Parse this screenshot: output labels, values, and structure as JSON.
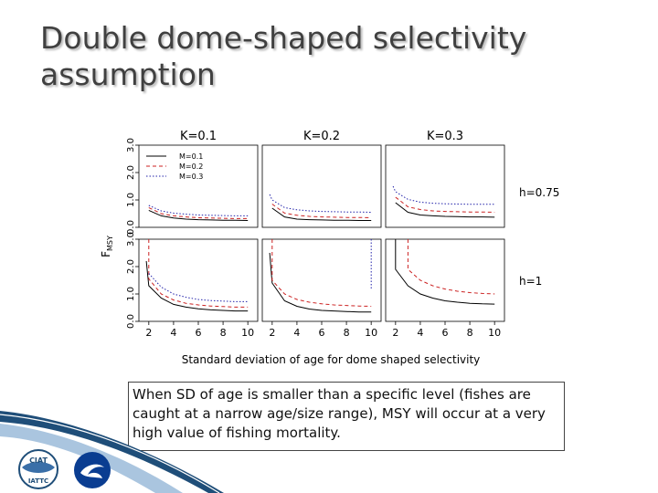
{
  "slide": {
    "title_line1": "Double dome-shaped selectivity",
    "title_line2": "assumption",
    "note": "When SD of age is smaller than a specific level (fishes are caught at a narrow age/size range), MSY will occur at a very high value of fishing mortality.",
    "logo_left_text": [
      "CIAT",
      "IATTC"
    ]
  },
  "chart_data": {
    "type": "line",
    "panel_columns": [
      "K=0.1",
      "K=0.2",
      "K=0.3"
    ],
    "panel_rows": [
      "h=0.75",
      "h=1"
    ],
    "ylabel": "F",
    "ylabel_sub": "MSY",
    "xlabel": "Standard deviation of age for dome shaped selectivity",
    "x_ticks": [
      2,
      4,
      6,
      8,
      10
    ],
    "y_ticks": [
      "0.0",
      "1.0",
      "2.0",
      "3.0"
    ],
    "xlim": [
      1.2,
      10.8
    ],
    "ylim": [
      0,
      3.0
    ],
    "legend": {
      "placement": "top-left",
      "entries": [
        "M=0.1",
        "M=0.2",
        "M=0.3"
      ]
    },
    "series_styles": [
      {
        "color": "#000000",
        "dash": ""
      },
      {
        "color": "#cc2222",
        "dash": "4,3"
      },
      {
        "color": "#2222aa",
        "dash": "1.5,2"
      }
    ],
    "panels": [
      {
        "col": 0,
        "row": 0,
        "series": [
          {
            "x": [
              2,
              3,
              4,
              5,
              6,
              7,
              8,
              9,
              10
            ],
            "y": [
              0.62,
              0.42,
              0.34,
              0.3,
              0.28,
              0.27,
              0.26,
              0.26,
              0.25
            ]
          },
          {
            "x": [
              2,
              3,
              4,
              5,
              6,
              7,
              8,
              9,
              10
            ],
            "y": [
              0.72,
              0.5,
              0.42,
              0.38,
              0.35,
              0.34,
              0.33,
              0.32,
              0.32
            ]
          },
          {
            "x": [
              2,
              3,
              4,
              5,
              6,
              7,
              8,
              9,
              10
            ],
            "y": [
              0.8,
              0.6,
              0.52,
              0.48,
              0.45,
              0.44,
              0.43,
              0.42,
              0.42
            ]
          }
        ]
      },
      {
        "col": 1,
        "row": 0,
        "series": [
          {
            "x": [
              2,
              3,
              4,
              5,
              6,
              7,
              8,
              9,
              10
            ],
            "y": [
              0.7,
              0.38,
              0.3,
              0.28,
              0.27,
              0.26,
              0.26,
              0.25,
              0.25
            ]
          },
          {
            "x": [
              2,
              3,
              4,
              5,
              6,
              7,
              8,
              9,
              10
            ],
            "y": [
              0.85,
              0.52,
              0.44,
              0.4,
              0.38,
              0.37,
              0.36,
              0.36,
              0.35
            ]
          },
          {
            "x": [
              1.8,
              2,
              3,
              4,
              5,
              6,
              7,
              8,
              9,
              10
            ],
            "y": [
              1.2,
              1.0,
              0.72,
              0.64,
              0.6,
              0.58,
              0.57,
              0.56,
              0.56,
              0.55
            ]
          }
        ]
      },
      {
        "col": 2,
        "row": 0,
        "series": [
          {
            "x": [
              2,
              3,
              4,
              5,
              6,
              7,
              8,
              9,
              10
            ],
            "y": [
              0.9,
              0.55,
              0.45,
              0.42,
              0.4,
              0.39,
              0.38,
              0.38,
              0.37
            ]
          },
          {
            "x": [
              2,
              3,
              4,
              5,
              6,
              7,
              8,
              9,
              10
            ],
            "y": [
              1.1,
              0.75,
              0.65,
              0.6,
              0.58,
              0.57,
              0.56,
              0.56,
              0.55
            ]
          },
          {
            "x": [
              1.8,
              2,
              3,
              4,
              5,
              6,
              7,
              8,
              9,
              10
            ],
            "y": [
              1.5,
              1.3,
              1.02,
              0.92,
              0.88,
              0.86,
              0.85,
              0.84,
              0.84,
              0.84
            ]
          }
        ]
      },
      {
        "col": 0,
        "row": 1,
        "series": [
          {
            "x": [
              1.8,
              2,
              3,
              4,
              5,
              6,
              7,
              8,
              9,
              10
            ],
            "y": [
              2.2,
              1.3,
              0.85,
              0.62,
              0.52,
              0.46,
              0.42,
              0.4,
              0.38,
              0.38
            ]
          },
          {
            "x": [
              2,
              2,
              3,
              4,
              5,
              6,
              7,
              8,
              9,
              10
            ],
            "y": [
              3.0,
              1.55,
              1.0,
              0.78,
              0.66,
              0.6,
              0.56,
              0.54,
              0.52,
              0.52
            ]
          },
          {
            "x": [
              2,
              3,
              4,
              5,
              6,
              7,
              8,
              9,
              10
            ],
            "y": [
              1.75,
              1.25,
              1.0,
              0.88,
              0.8,
              0.76,
              0.74,
              0.72,
              0.72
            ]
          }
        ]
      },
      {
        "col": 1,
        "row": 1,
        "series": [
          {
            "x": [
              1.8,
              2,
              3,
              4,
              5,
              6,
              7,
              8,
              9,
              10
            ],
            "y": [
              2.5,
              1.4,
              0.75,
              0.55,
              0.45,
              0.4,
              0.38,
              0.36,
              0.34,
              0.34
            ]
          },
          {
            "x": [
              2,
              2,
              3,
              4,
              5,
              6,
              7,
              8,
              9,
              10
            ],
            "y": [
              3.0,
              1.5,
              1.0,
              0.8,
              0.7,
              0.64,
              0.6,
              0.58,
              0.56,
              0.55
            ]
          },
          {
            "x": [
              10,
              10
            ],
            "y": [
              3.0,
              1.2
            ]
          }
        ]
      },
      {
        "col": 2,
        "row": 1,
        "series": [
          {
            "x": [
              2,
              2,
              3,
              4,
              5,
              6,
              7,
              8,
              9,
              10
            ],
            "y": [
              3.0,
              1.9,
              1.3,
              1.0,
              0.85,
              0.75,
              0.7,
              0.66,
              0.64,
              0.63
            ]
          },
          {
            "x": [
              3,
              3,
              4,
              5,
              6,
              7,
              8,
              9,
              10
            ],
            "y": [
              3.0,
              1.9,
              1.5,
              1.3,
              1.18,
              1.1,
              1.05,
              1.02,
              1.0
            ]
          }
        ]
      }
    ]
  }
}
